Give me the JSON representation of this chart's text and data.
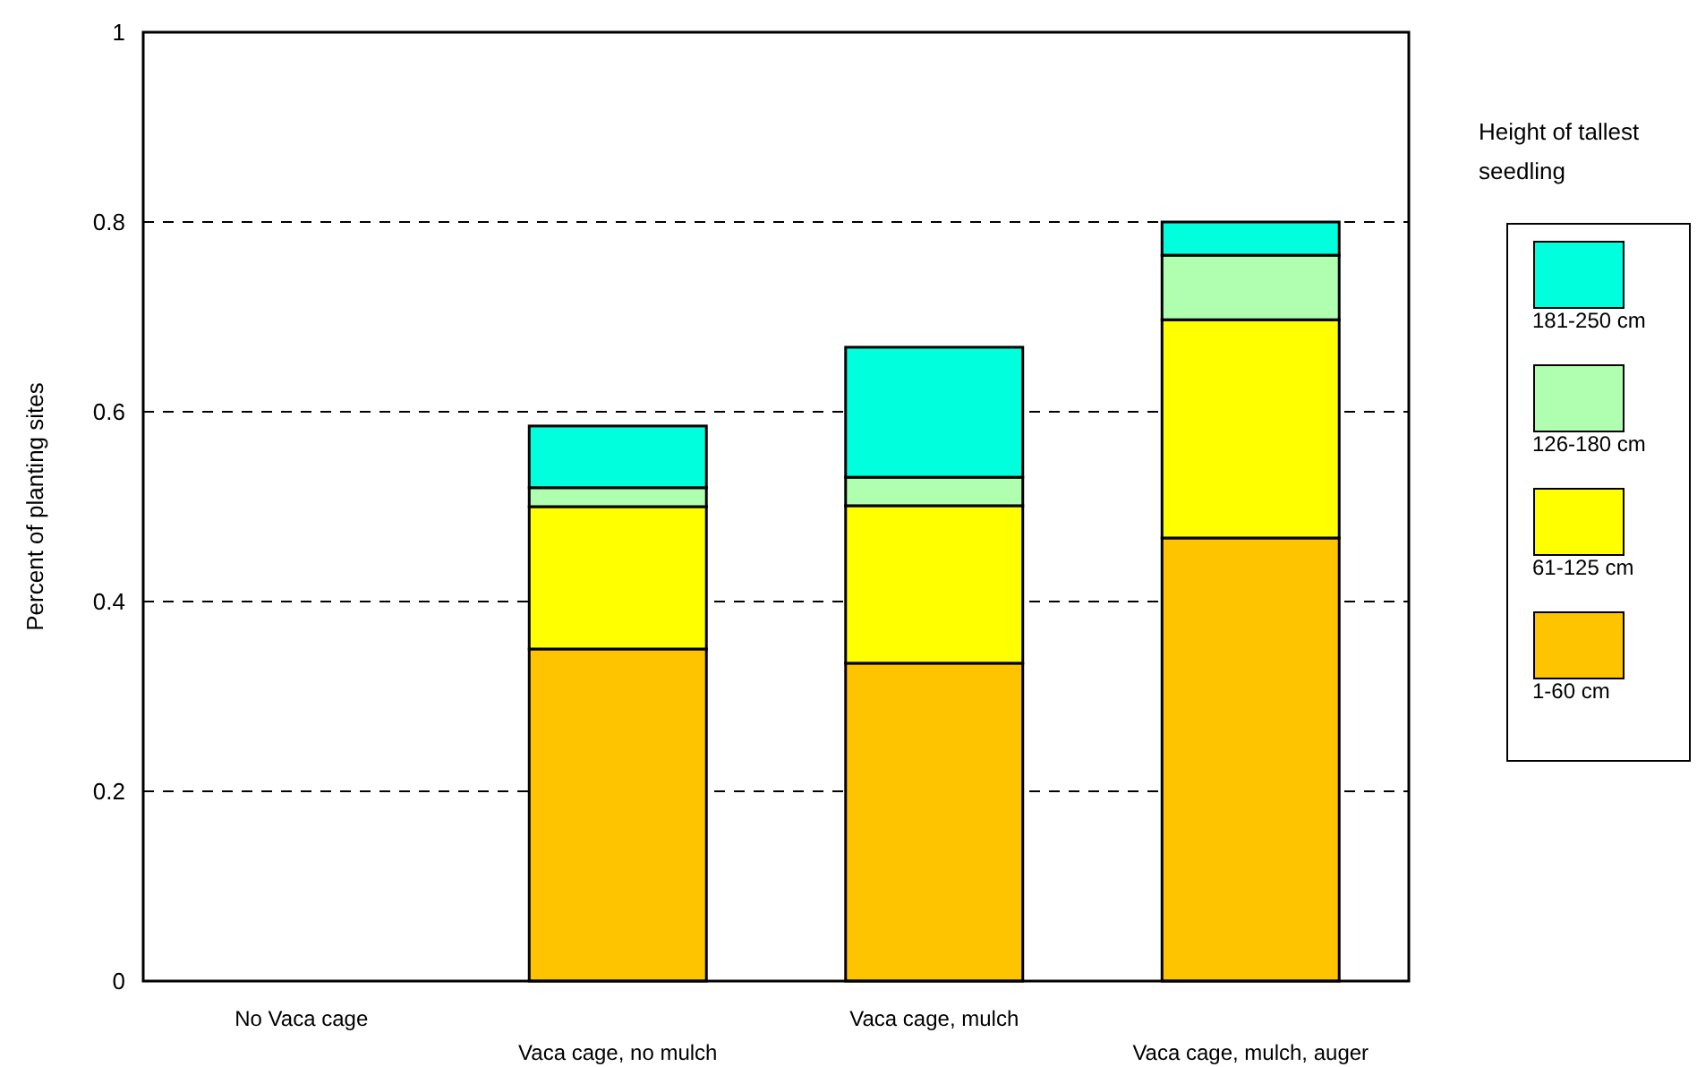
{
  "chart_data": {
    "type": "bar",
    "stacked": true,
    "ylabel": "Percent of planting sites",
    "legend_title": "Height of tallest seedling",
    "categories": [
      "No Vaca cage",
      "Vaca cage, no mulch",
      "Vaca cage, mulch",
      "Vaca cage, mulch, auger"
    ],
    "series": [
      {
        "name": "1-60 cm",
        "color": "#ffc400",
        "values": [
          0,
          0.35,
          0.335,
          0.467
        ]
      },
      {
        "name": "61-125 cm",
        "color": "#ffff00",
        "values": [
          0,
          0.15,
          0.166,
          0.23
        ]
      },
      {
        "name": "126-180 cm",
        "color": "#b0ffb0",
        "values": [
          0,
          0.02,
          0.03,
          0.068
        ]
      },
      {
        "name": "181-250 cm",
        "color": "#00ffdd",
        "values": [
          0,
          0.065,
          0.137,
          0.035
        ]
      }
    ],
    "ylim": [
      0,
      1
    ],
    "yticks": [
      0,
      0.2,
      0.4,
      0.6,
      0.8,
      1
    ],
    "grid": "y",
    "legend": "right"
  }
}
